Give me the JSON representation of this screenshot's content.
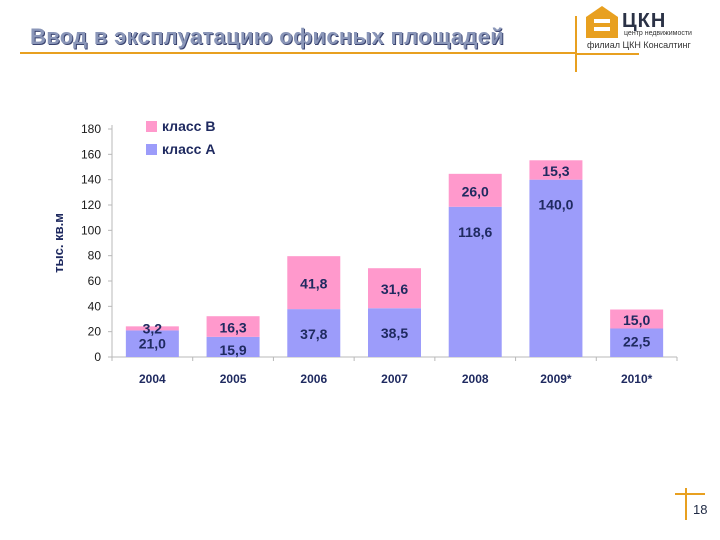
{
  "title": "Ввод в эксплуатацию офисных площадей",
  "logo": {
    "name": "ЦКН",
    "subtitle": "центр недвижимости",
    "branch": "филиал ЦКН Консалтинг"
  },
  "page_number": "18",
  "colors": {
    "title": "#8a96b8",
    "accent": "#e8a020",
    "class_a": "#9c9cfa",
    "class_b": "#ff99cc"
  },
  "chart_data": {
    "type": "bar",
    "stacked": true,
    "categories": [
      "2004",
      "2005",
      "2006",
      "2007",
      "2008",
      "2009*",
      "2010*"
    ],
    "series": [
      {
        "name": "класс А",
        "values": [
          21.0,
          15.9,
          37.8,
          38.5,
          118.6,
          140.0,
          22.5
        ],
        "labels": [
          "21,0",
          "15,9",
          "37,8",
          "38,5",
          "118,6",
          "140,0",
          "22,5"
        ],
        "color": "#9c9cfa"
      },
      {
        "name": "класс В",
        "values": [
          3.2,
          16.3,
          41.8,
          31.6,
          26.0,
          15.3,
          15.0
        ],
        "labels": [
          "3,2",
          "16,3",
          "41,8",
          "31,6",
          "26,0",
          "15,3",
          "15,0"
        ],
        "color": "#ff99cc"
      }
    ],
    "ylabel": "тыс. кв.м",
    "ylim": [
      0,
      180
    ],
    "yticks": [
      "0",
      "20",
      "40",
      "60",
      "80",
      "100",
      "120",
      "140",
      "160",
      "180"
    ],
    "legend": {
      "placement": "top-left",
      "items": [
        "класс В",
        "класс А"
      ]
    },
    "grid": false
  }
}
